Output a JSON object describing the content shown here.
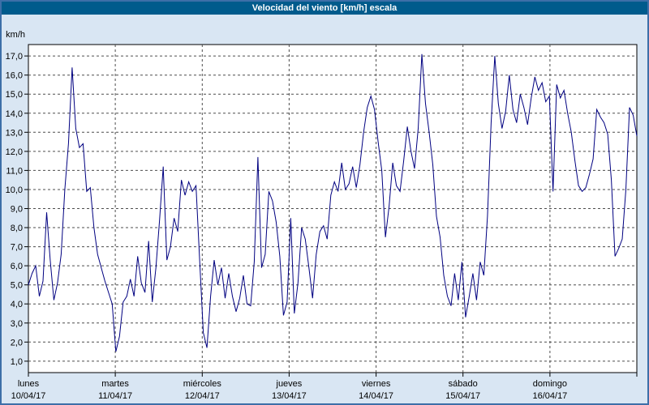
{
  "window": {
    "title": "Velocidad del viento [km/h] escala"
  },
  "colors": {
    "titlebar_bg": "#005b8c",
    "titlebar_text": "#ffffff",
    "window_bg": "#d9e6f3",
    "window_border": "#3d6fa8"
  },
  "chart_data": {
    "type": "line",
    "title": "Velocidad del viento [km/h] escala",
    "y_axis_unit": "km/h",
    "decimal_separator": ",",
    "ylim": [
      0.4,
      17.6
    ],
    "y_tick_min": 1,
    "y_tick_max": 17,
    "y_tick_step": 1,
    "grid": "dashed",
    "legend": "none",
    "line_color": "#000080",
    "grid_color": "#4d4d4d",
    "plot_bg": "#ffffff",
    "points_per_day": 24,
    "x_days": [
      {
        "name": "lunes",
        "date": "10/04/17"
      },
      {
        "name": "martes",
        "date": "11/04/17"
      },
      {
        "name": "miércoles",
        "date": "12/04/17"
      },
      {
        "name": "jueves",
        "date": "13/04/17"
      },
      {
        "name": "viernes",
        "date": "14/04/17"
      },
      {
        "name": "sábado",
        "date": "15/04/17"
      },
      {
        "name": "domingo",
        "date": "16/04/17"
      }
    ],
    "values": [
      5.0,
      5.6,
      6.0,
      4.4,
      5.2,
      8.8,
      6.3,
      4.2,
      5.1,
      6.6,
      10.0,
      12.4,
      16.4,
      13.2,
      12.2,
      12.4,
      9.9,
      10.1,
      8.0,
      6.6,
      5.9,
      5.2,
      4.6,
      4.0,
      1.5,
      2.3,
      4.1,
      4.4,
      5.3,
      4.4,
      6.5,
      5.1,
      4.6,
      7.3,
      4.1,
      5.9,
      8.4,
      11.2,
      6.3,
      7.0,
      8.5,
      7.8,
      10.5,
      9.7,
      10.4,
      9.9,
      10.2,
      6.3,
      2.5,
      1.7,
      4.4,
      6.3,
      5.0,
      5.9,
      4.3,
      5.6,
      4.4,
      3.6,
      4.3,
      5.5,
      4.0,
      3.9,
      6.2,
      11.7,
      5.9,
      6.6,
      9.9,
      9.4,
      8.3,
      6.5,
      3.4,
      4.1,
      8.5,
      3.5,
      5.1,
      8.0,
      7.4,
      5.9,
      4.3,
      6.6,
      7.8,
      8.1,
      7.4,
      9.7,
      10.4,
      9.9,
      11.4,
      10.0,
      10.3,
      11.2,
      10.1,
      11.3,
      13.0,
      14.3,
      14.9,
      14.2,
      12.5,
      11.0,
      7.5,
      9.1,
      11.4,
      10.2,
      9.9,
      11.5,
      13.3,
      12.0,
      11.1,
      13.2,
      17.1,
      14.5,
      13.0,
      11.3,
      8.6,
      7.5,
      5.5,
      4.4,
      3.9,
      5.6,
      4.2,
      6.2,
      3.3,
      4.4,
      5.6,
      4.2,
      6.2,
      5.5,
      8.6,
      13.5,
      17.0,
      14.5,
      13.2,
      14.1,
      16.0,
      14.2,
      13.5,
      15.0,
      14.3,
      13.4,
      14.8,
      15.9,
      15.2,
      15.6,
      14.6,
      14.9,
      9.9,
      15.5,
      14.8,
      15.2,
      14.0,
      13.0,
      11.5,
      10.2,
      9.9,
      10.1,
      10.8,
      11.6,
      14.2,
      13.8,
      13.5,
      12.9,
      10.5,
      6.5,
      6.9,
      7.4,
      10.0,
      14.3,
      13.9,
      12.8
    ]
  }
}
